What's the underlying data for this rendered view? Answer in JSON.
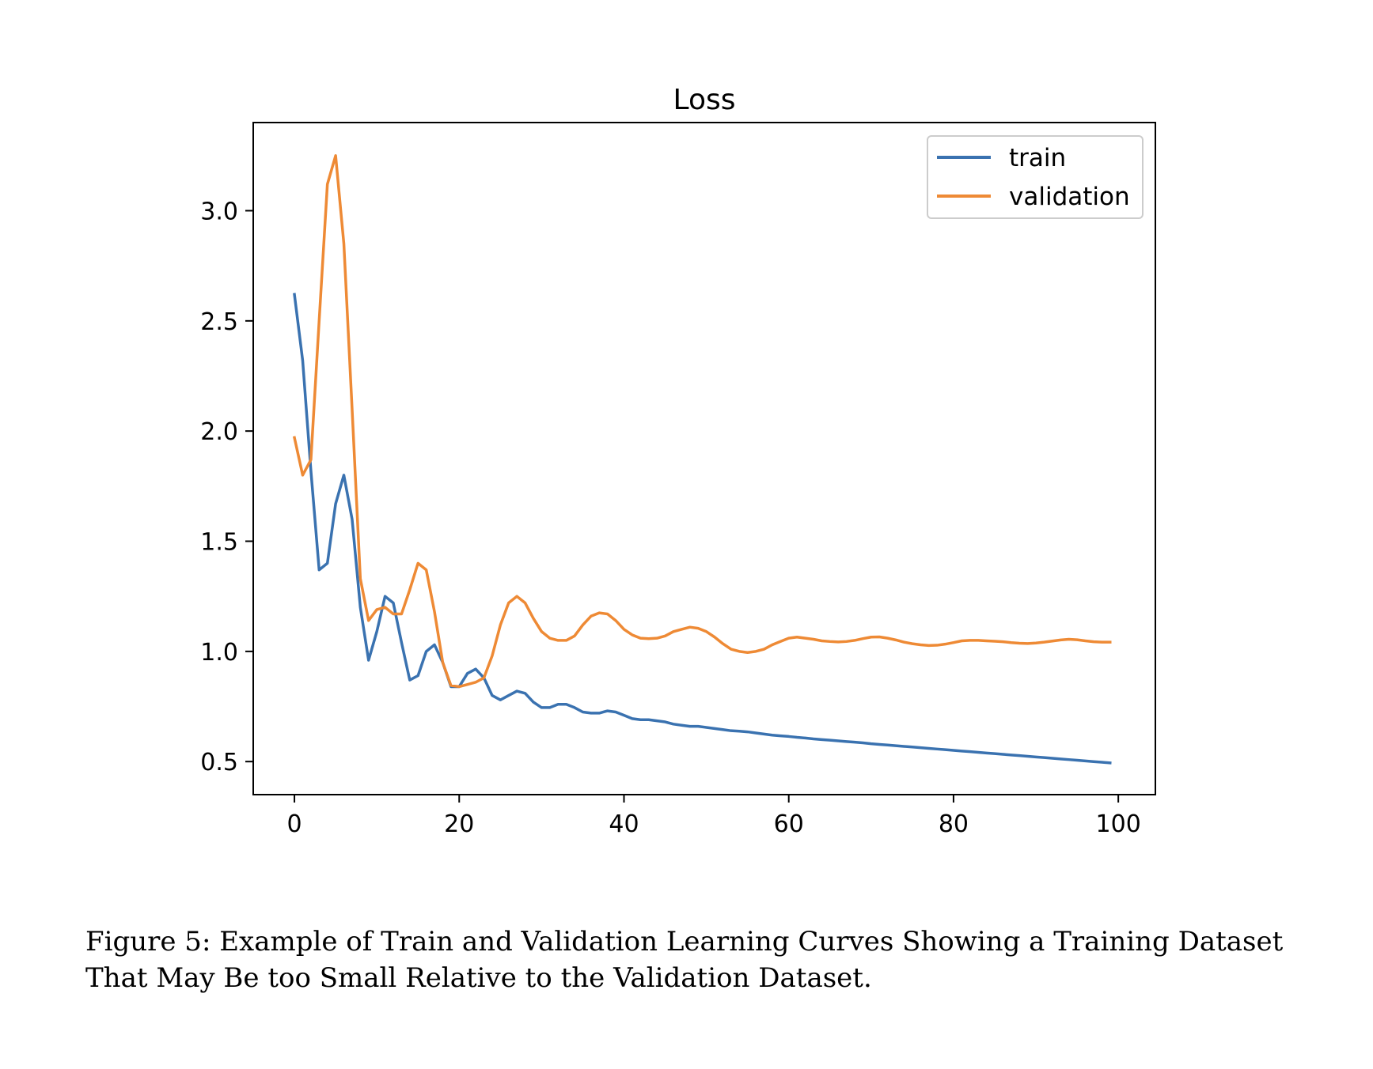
{
  "chart_data": {
    "type": "line",
    "title": "Loss",
    "xlabel": "",
    "ylabel": "",
    "xlim": [
      -5,
      104.5
    ],
    "ylim": [
      0.35,
      3.4
    ],
    "x_ticks": [
      0,
      20,
      40,
      60,
      80,
      100
    ],
    "y_ticks": [
      0.5,
      1.0,
      1.5,
      2.0,
      2.5,
      3.0
    ],
    "x_tick_labels": [
      "0",
      "20",
      "40",
      "60",
      "80",
      "100"
    ],
    "y_tick_labels": [
      "0.5",
      "1.0",
      "1.5",
      "2.0",
      "2.5",
      "3.0"
    ],
    "grid": false,
    "legend_position": "top-right",
    "series": [
      {
        "name": "train",
        "color": "#3a72b0",
        "values": [
          2.62,
          2.32,
          1.82,
          1.37,
          1.4,
          1.67,
          1.8,
          1.6,
          1.2,
          0.96,
          1.09,
          1.25,
          1.22,
          1.04,
          0.87,
          0.89,
          1.0,
          1.03,
          0.95,
          0.84,
          0.84,
          0.9,
          0.92,
          0.88,
          0.8,
          0.78,
          0.8,
          0.82,
          0.81,
          0.77,
          0.745,
          0.745,
          0.76,
          0.76,
          0.745,
          0.725,
          0.72,
          0.72,
          0.73,
          0.725,
          0.71,
          0.695,
          0.69,
          0.69,
          0.685,
          0.68,
          0.67,
          0.665,
          0.66,
          0.66,
          0.655,
          0.65,
          0.645,
          0.64,
          0.638,
          0.635,
          0.63,
          0.625,
          0.62,
          0.617,
          0.614,
          0.61,
          0.607,
          0.603,
          0.6,
          0.597,
          0.594,
          0.591,
          0.588,
          0.585,
          0.581,
          0.578,
          0.575,
          0.572,
          0.569,
          0.566,
          0.563,
          0.56,
          0.557,
          0.554,
          0.551,
          0.548,
          0.545,
          0.542,
          0.539,
          0.536,
          0.533,
          0.53,
          0.527,
          0.524,
          0.521,
          0.518,
          0.515,
          0.512,
          0.509,
          0.506,
          0.503,
          0.5,
          0.497,
          0.494
        ]
      },
      {
        "name": "validation",
        "color": "#ee8a35",
        "values": [
          1.97,
          1.8,
          1.87,
          2.5,
          3.12,
          3.25,
          2.85,
          2.1,
          1.33,
          1.14,
          1.19,
          1.2,
          1.17,
          1.17,
          1.28,
          1.4,
          1.37,
          1.18,
          0.95,
          0.845,
          0.84,
          0.85,
          0.86,
          0.88,
          0.98,
          1.12,
          1.22,
          1.25,
          1.22,
          1.15,
          1.09,
          1.06,
          1.05,
          1.05,
          1.07,
          1.12,
          1.16,
          1.175,
          1.17,
          1.14,
          1.1,
          1.075,
          1.06,
          1.058,
          1.06,
          1.07,
          1.09,
          1.1,
          1.11,
          1.105,
          1.09,
          1.065,
          1.035,
          1.01,
          1.0,
          0.995,
          1.0,
          1.01,
          1.03,
          1.045,
          1.06,
          1.065,
          1.06,
          1.055,
          1.048,
          1.045,
          1.043,
          1.045,
          1.05,
          1.058,
          1.065,
          1.066,
          1.06,
          1.052,
          1.042,
          1.035,
          1.03,
          1.027,
          1.028,
          1.033,
          1.04,
          1.048,
          1.05,
          1.05,
          1.048,
          1.046,
          1.044,
          1.04,
          1.037,
          1.036,
          1.038,
          1.042,
          1.047,
          1.052,
          1.055,
          1.053,
          1.048,
          1.044,
          1.042,
          1.042
        ]
      }
    ]
  },
  "caption": "Figure 5: Example of Train and Validation Learning Curves Showing a Training Dataset That May Be too Small Relative to the Validation Dataset."
}
